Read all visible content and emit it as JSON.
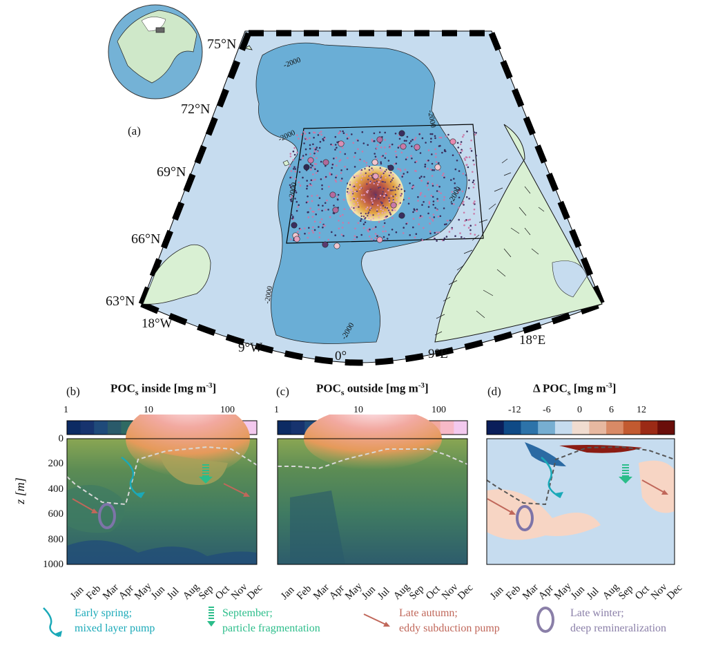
{
  "map": {
    "panel_label": "(a)",
    "lat_labels": [
      "75°N",
      "72°N",
      "69°N",
      "66°N",
      "63°N"
    ],
    "lon_labels": [
      "18°W",
      "9°W",
      "0°",
      "9°E",
      "18°E"
    ],
    "contour_label": "-2000",
    "colors": {
      "ocean": "#c6dcef",
      "basin": "#6aaed6",
      "land": "#d9f0d3"
    }
  },
  "panels": [
    {
      "label": "(b)",
      "title": "POC",
      "sub": "s",
      "tail": " inside [mg m",
      "sup": "-3",
      "end": "]",
      "cb_ticks": [
        "1",
        "10",
        "100"
      ]
    },
    {
      "label": "(c)",
      "title": "POC",
      "sub": "s",
      "tail": " outside [mg m",
      "sup": "-3",
      "end": "]",
      "cb_ticks": [
        "1",
        "10",
        "100"
      ]
    },
    {
      "label": "(d)",
      "title": "Δ POC",
      "sub": "s",
      "tail": " [mg m",
      "sup": "-3",
      "end": "]",
      "cb_ticks": [
        "-12",
        "-6",
        "0",
        "6",
        "12"
      ]
    }
  ],
  "axis": {
    "ylabel": "z [m]",
    "yticks": [
      "0",
      "200",
      "400",
      "600",
      "800",
      "1000"
    ],
    "months": [
      "Jan",
      "Feb",
      "Mar",
      "Apr",
      "May",
      "Jun",
      "Jul",
      "Aug",
      "Sep",
      "Oct",
      "Nov",
      "Dec"
    ]
  },
  "legend": [
    {
      "line1": "Early spring;",
      "line2": "mixed layer pump",
      "color": "#1aa9b8",
      "icon": "curved-arrow-icon"
    },
    {
      "line1": "September;",
      "line2": "particle fragmentation",
      "color": "#2bbd8a",
      "icon": "striped-down-arrow-icon"
    },
    {
      "line1": "Late autumn;",
      "line2": "eddy subduction pump",
      "color": "#c0675a",
      "icon": "straight-arrow-icon"
    },
    {
      "line1": "Late winter;",
      "line2": "deep remineralization",
      "color": "#8a7fa8",
      "icon": "circular-arrows-icon"
    }
  ]
}
